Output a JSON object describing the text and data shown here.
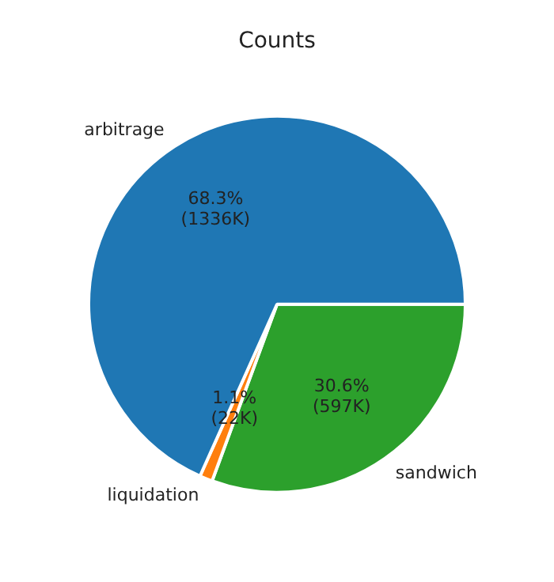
{
  "chart_data": {
    "type": "pie",
    "title": "Counts",
    "categories": [
      "arbitrage",
      "liquidation",
      "sandwich"
    ],
    "values": [
      68.3,
      1.1,
      30.6
    ],
    "value_labels": [
      "68.3%\n(1336K)",
      "1.1%\n(22K)",
      "30.6%\n(597K)"
    ],
    "colors": [
      "#1f77b4",
      "#ff7f0e",
      "#2ca02c"
    ],
    "legend": false
  }
}
